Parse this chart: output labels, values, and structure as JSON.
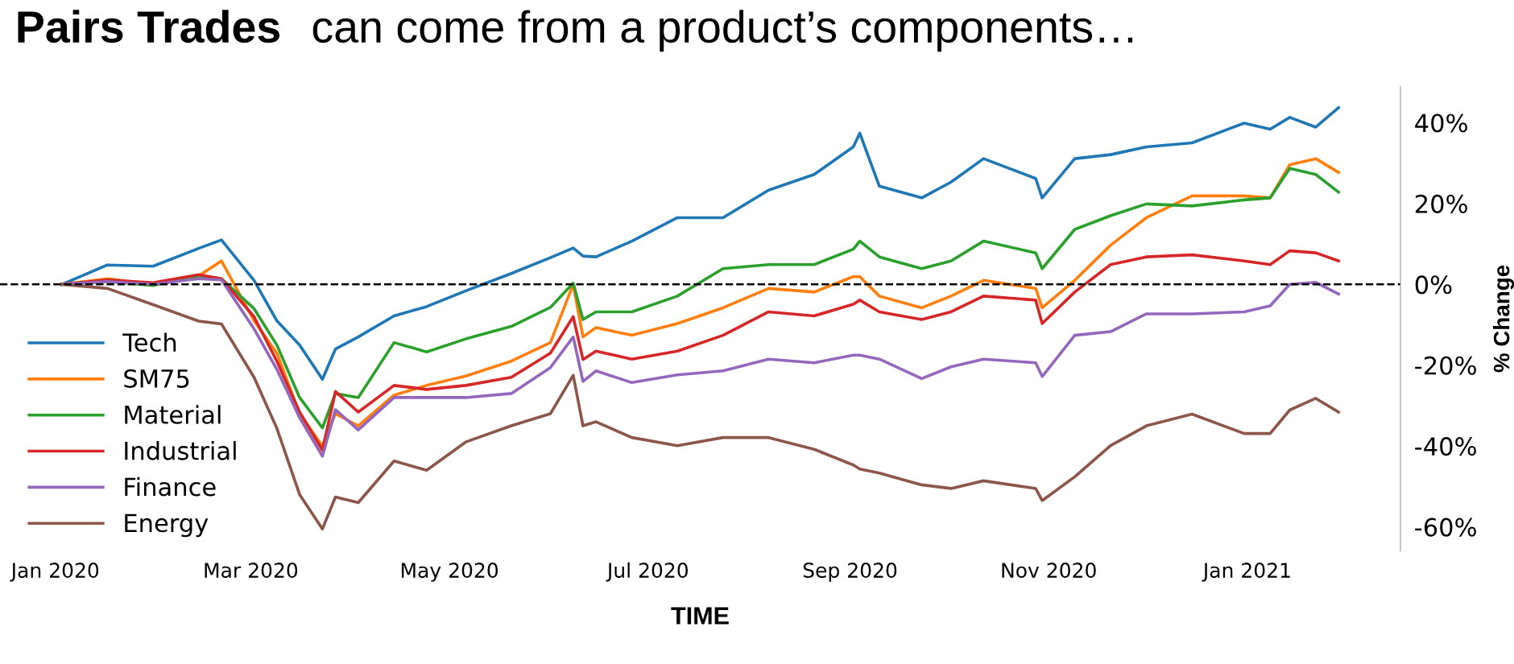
{
  "chart_data": {
    "type": "line",
    "title": "Pairs Trades",
    "subtitle": "can come from a product’s components…",
    "xlabel": "TIME",
    "ylabel": "% Change",
    "x": [
      "2020-01-03",
      "2020-01-17",
      "2020-01-31",
      "2020-02-14",
      "2020-02-21",
      "2020-03-02",
      "2020-03-09",
      "2020-03-16",
      "2020-03-23",
      "2020-03-27",
      "2020-04-03",
      "2020-04-14",
      "2020-04-24",
      "2020-05-06",
      "2020-05-20",
      "2020-06-01",
      "2020-06-08",
      "2020-06-11",
      "2020-06-15",
      "2020-06-26",
      "2020-07-10",
      "2020-07-24",
      "2020-08-07",
      "2020-08-21",
      "2020-09-02",
      "2020-09-04",
      "2020-09-10",
      "2020-09-23",
      "2020-10-02",
      "2020-10-12",
      "2020-10-28",
      "2020-10-30",
      "2020-11-09",
      "2020-11-20",
      "2020-12-01",
      "2020-12-15",
      "2020-12-31",
      "2021-01-08",
      "2021-01-14",
      "2021-01-22",
      "2021-01-29"
    ],
    "series": [
      {
        "name": "Tech",
        "color": "#1f77b4",
        "values": [
          0,
          4.8,
          4.5,
          8.9,
          11,
          1,
          -9,
          -15,
          -23.5,
          -16,
          -13,
          -7.8,
          -5.5,
          -1.6,
          2.7,
          6.6,
          9,
          7,
          6.8,
          10.7,
          16.5,
          16.5,
          23.3,
          27.2,
          34,
          37.4,
          24.3,
          21.4,
          25.3,
          31.1,
          26.2,
          21.4,
          31.1,
          32.1,
          34,
          35,
          39.9,
          38.4,
          41.3,
          38.9,
          43.7
        ]
      },
      {
        "name": "SM75",
        "color": "#ff7f0e",
        "values": [
          0,
          1.4,
          0,
          2.1,
          5.8,
          -9,
          -17,
          -32,
          -40,
          -32,
          -35,
          -27.4,
          -25,
          -22.7,
          -19,
          -14.4,
          0,
          -13,
          -10.7,
          -12.6,
          -9.7,
          -5.8,
          -1,
          -1.9,
          1.9,
          1.9,
          -2.9,
          -5.8,
          -2.9,
          1,
          -1,
          -5.8,
          1,
          9.7,
          16.5,
          21.9,
          21.9,
          21.4,
          29.6,
          31.1,
          27.7
        ]
      },
      {
        "name": "Material",
        "color": "#2ca02c",
        "values": [
          0,
          0.7,
          -0.3,
          2.1,
          1.4,
          -6,
          -15,
          -28,
          -35.5,
          -27,
          -28,
          -14.4,
          -16.7,
          -13.5,
          -10.4,
          -5.7,
          0.3,
          -8.7,
          -6.8,
          -6.8,
          -2.9,
          3.9,
          4.9,
          4.9,
          8.7,
          10.7,
          6.8,
          3.9,
          5.8,
          10.7,
          7.8,
          3.9,
          13.6,
          17,
          19.9,
          19.4,
          20.9,
          21.4,
          28.7,
          27.2,
          22.8
        ]
      },
      {
        "name": "Industrial",
        "color": "#d62728",
        "values": [
          0,
          1.1,
          0.4,
          2.4,
          1.4,
          -8,
          -19,
          -31.6,
          -41,
          -26.5,
          -31.6,
          -25,
          -26,
          -25,
          -23,
          -17,
          -8,
          -18.6,
          -16.5,
          -18.5,
          -16.5,
          -12.6,
          -6.8,
          -7.8,
          -4.9,
          -3.9,
          -6.8,
          -8.7,
          -6.8,
          -2.9,
          -3.9,
          -9.7,
          -1.9,
          4.9,
          6.8,
          7.3,
          5.8,
          4.9,
          8.3,
          7.8,
          5.8
        ]
      },
      {
        "name": "Finance",
        "color": "#9467bd",
        "values": [
          0,
          0.7,
          0,
          1.4,
          1.1,
          -11,
          -21,
          -33,
          -42.5,
          -31,
          -36,
          -28,
          -28,
          -28,
          -27,
          -20.6,
          -13,
          -24,
          -21.4,
          -24.3,
          -22.4,
          -21.4,
          -18.5,
          -19.4,
          -17.5,
          -17.5,
          -18.5,
          -23.3,
          -20.4,
          -18.5,
          -19.4,
          -22.8,
          -12.6,
          -11.7,
          -7.3,
          -7.3,
          -6.8,
          -5.3,
          0,
          0.5,
          -2.4
        ]
      },
      {
        "name": "Energy",
        "color": "#8c564b",
        "values": [
          0,
          -1,
          -5,
          -9.1,
          -9.8,
          -23,
          -35.6,
          -52,
          -60.5,
          -52.6,
          -54,
          -43.7,
          -46,
          -39,
          -35,
          -32,
          -22.5,
          -35,
          -34,
          -37.9,
          -39.9,
          -37.9,
          -37.9,
          -40.8,
          -44.7,
          -45.7,
          -46.7,
          -49.6,
          -50.5,
          -48.6,
          -50.5,
          -53.5,
          -47.6,
          -39.9,
          -35,
          -32.1,
          -36.9,
          -36.9,
          -31.1,
          -28.2,
          -31.6
        ]
      }
    ],
    "xlim": [
      "2019-12-15",
      "2021-02-17"
    ],
    "xticks": [
      {
        "value": "2020-01-01",
        "label": "Jan 2020"
      },
      {
        "value": "2020-03-01",
        "label": "Mar 2020"
      },
      {
        "value": "2020-05-01",
        "label": "May 2020"
      },
      {
        "value": "2020-07-01",
        "label": "Jul 2020"
      },
      {
        "value": "2020-09-01",
        "label": "Sep 2020"
      },
      {
        "value": "2020-11-01",
        "label": "Nov 2020"
      },
      {
        "value": "2021-01-01",
        "label": "Jan 2021"
      }
    ],
    "ylim": [
      -66,
      49
    ],
    "yticks": [
      {
        "value": -60,
        "label": "-60%"
      },
      {
        "value": -40,
        "label": "-40%"
      },
      {
        "value": -20,
        "label": "-20%"
      },
      {
        "value": 0,
        "label": "0%"
      },
      {
        "value": 20,
        "label": "20%"
      },
      {
        "value": 40,
        "label": "40%"
      }
    ],
    "ref_lines": [
      {
        "axis": "y",
        "value": 0,
        "color": "#000000",
        "line_style": "dashed"
      }
    ],
    "legend": "center left",
    "grid": false,
    "marker": "none",
    "line_style": "solid"
  }
}
